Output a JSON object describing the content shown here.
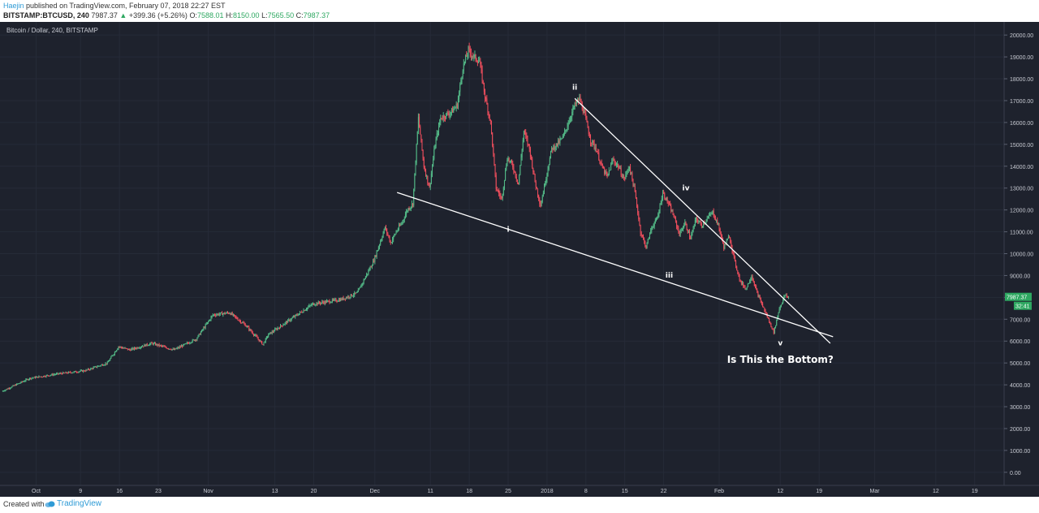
{
  "header": {
    "author": "Haejin",
    "published": "published on TradingView.com, February 07, 2018 22:27 EST",
    "symbol": "BITSTAMP:BTCUSD, 240",
    "last": "7987.37",
    "change_arrow": "▲",
    "change": "+399.36 (+5.26%)",
    "o_label": "O:",
    "o_value": "7588.01",
    "h_label": "H:",
    "h_value": "8150.00",
    "l_label": "L:",
    "l_value": "7565.50",
    "c_label": "C:",
    "c_value": "7987.37"
  },
  "footer": {
    "created_with": "Created with",
    "brand": "TradingView"
  },
  "colors": {
    "background": "#1e222d",
    "up": "#53b987",
    "down": "#eb4d5c",
    "grid": "#262b38",
    "line": "#ffffff",
    "axis_text": "#c8cbd3",
    "price_tag": "#2ea861"
  },
  "chart_data": {
    "type": "candlestick",
    "title": "Bitcoin / Dollar, 240, BITSTAMP",
    "price_axis": [
      "20000.00",
      "19000.00",
      "18000.00",
      "17000.00",
      "16000.00",
      "15000.00",
      "14000.00",
      "13000.00",
      "12000.00",
      "11000.00",
      "10000.00",
      "9000.00",
      "8000.00",
      "7000.00",
      "6000.00",
      "5000.00",
      "4000.00",
      "3000.00",
      "2000.00",
      "1000.00",
      "0.00"
    ],
    "ylim": [
      -600,
      20600
    ],
    "time_axis": [
      {
        "label": "Oct",
        "day": 1
      },
      {
        "label": "9",
        "day": 9
      },
      {
        "label": "16",
        "day": 16
      },
      {
        "label": "23",
        "day": 23
      },
      {
        "label": "Nov",
        "day": 32
      },
      {
        "label": "13",
        "day": 44
      },
      {
        "label": "20",
        "day": 51
      },
      {
        "label": "Dec",
        "day": 62
      },
      {
        "label": "11",
        "day": 72
      },
      {
        "label": "18",
        "day": 79
      },
      {
        "label": "25",
        "day": 86
      },
      {
        "label": "2018",
        "day": 93
      },
      {
        "label": "8",
        "day": 100
      },
      {
        "label": "15",
        "day": 107
      },
      {
        "label": "22",
        "day": 114
      },
      {
        "label": "Feb",
        "day": 124
      },
      {
        "label": "12",
        "day": 135
      },
      {
        "label": "19",
        "day": 142
      },
      {
        "label": "Mar",
        "day": 152
      },
      {
        "label": "12",
        "day": 163
      },
      {
        "label": "19",
        "day": 170
      }
    ],
    "xlim": [
      -5.5,
      175.3
    ],
    "price_anchors": [
      [
        -5,
        3700
      ],
      [
        0,
        4300
      ],
      [
        5,
        4500
      ],
      [
        10,
        4650
      ],
      [
        14,
        5000
      ],
      [
        16,
        5750
      ],
      [
        18,
        5600
      ],
      [
        22,
        5900
      ],
      [
        26,
        5600
      ],
      [
        30,
        6100
      ],
      [
        33,
        7200
      ],
      [
        36,
        7300
      ],
      [
        39,
        6700
      ],
      [
        42,
        5850
      ],
      [
        43,
        6300
      ],
      [
        47,
        7000
      ],
      [
        51,
        7700
      ],
      [
        56,
        7900
      ],
      [
        59,
        8200
      ],
      [
        62,
        9700
      ],
      [
        64,
        11200
      ],
      [
        65,
        10500
      ],
      [
        66,
        11000
      ],
      [
        67,
        11400
      ],
      [
        68,
        12000
      ],
      [
        69,
        12300
      ],
      [
        70,
        16200
      ],
      [
        71,
        14000
      ],
      [
        72,
        13000
      ],
      [
        73,
        15000
      ],
      [
        74,
        16200
      ],
      [
        76,
        16500
      ],
      [
        77,
        16800
      ],
      [
        78,
        18500
      ],
      [
        79,
        19300
      ],
      [
        80,
        19000
      ],
      [
        81,
        18800
      ],
      [
        82,
        17200
      ],
      [
        83,
        16000
      ],
      [
        84,
        13000
      ],
      [
        85,
        12500
      ],
      [
        86,
        14400
      ],
      [
        87,
        14000
      ],
      [
        88,
        13200
      ],
      [
        89,
        15600
      ],
      [
        90,
        14800
      ],
      [
        91,
        13300
      ],
      [
        92,
        12200
      ],
      [
        93,
        13500
      ],
      [
        94,
        14800
      ],
      [
        95,
        15000
      ],
      [
        96,
        15300
      ],
      [
        98,
        16700
      ],
      [
        99,
        17100
      ],
      [
        100,
        16300
      ],
      [
        101,
        15200
      ],
      [
        102,
        14800
      ],
      [
        103,
        14000
      ],
      [
        104,
        13500
      ],
      [
        105,
        14300
      ],
      [
        106,
        14000
      ],
      [
        107,
        13400
      ],
      [
        108,
        14000
      ],
      [
        109,
        12800
      ],
      [
        110,
        11000
      ],
      [
        111,
        10300
      ],
      [
        112,
        11200
      ],
      [
        113,
        11600
      ],
      [
        114,
        12800
      ],
      [
        115,
        12300
      ],
      [
        116,
        11700
      ],
      [
        117,
        10900
      ],
      [
        118,
        11400
      ],
      [
        119,
        10700
      ],
      [
        120,
        11600
      ],
      [
        121,
        11300
      ],
      [
        122,
        11600
      ],
      [
        123,
        11900
      ],
      [
        124,
        11300
      ],
      [
        125,
        10300
      ],
      [
        126,
        10800
      ],
      [
        127,
        9600
      ],
      [
        128,
        8700
      ],
      [
        129,
        8400
      ],
      [
        130,
        9000
      ],
      [
        131,
        8200
      ],
      [
        132,
        7600
      ],
      [
        133,
        7000
      ],
      [
        134,
        6400
      ],
      [
        135,
        7500
      ],
      [
        136,
        8100
      ],
      [
        136.5,
        7987
      ]
    ],
    "candles_per_day": 6,
    "last_price": "7987.37",
    "last_price_sub": "32:41",
    "trendlines": [
      {
        "name": "lower-trendline",
        "from": [
          66,
          12800
        ],
        "to": [
          144.5,
          6200
        ]
      },
      {
        "name": "upper-trendline",
        "from": [
          98,
          17100
        ],
        "to": [
          144,
          5900
        ]
      }
    ],
    "annotations": [
      {
        "name": "wave-label-i",
        "text": "i",
        "day": 86,
        "price": 11000
      },
      {
        "name": "wave-label-ii",
        "text": "ii",
        "day": 98,
        "price": 17500
      },
      {
        "name": "wave-label-iii",
        "text": "iii",
        "day": 115,
        "price": 8900
      },
      {
        "name": "wave-label-iv",
        "text": "iv",
        "day": 118,
        "price": 12900
      },
      {
        "name": "wave-label-v",
        "text": "v",
        "day": 135,
        "price": 5800
      },
      {
        "name": "question-label",
        "text": "Is This the Bottom?",
        "day": 135,
        "price": 5000
      }
    ]
  }
}
